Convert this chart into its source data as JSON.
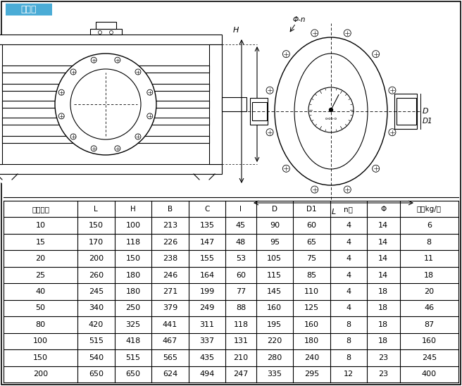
{
  "title": "铸铁型",
  "title_bg": "#4BACD6",
  "title_color": "#FFFFFF",
  "columns": [
    "公称通径",
    "L",
    "H",
    "B",
    "C",
    "I",
    "D",
    "D1",
    "n个",
    "Φ",
    "重量kg/台"
  ],
  "rows": [
    [
      10,
      150,
      100,
      213,
      135,
      45,
      90,
      60,
      4,
      14,
      6
    ],
    [
      15,
      170,
      118,
      226,
      147,
      48,
      95,
      65,
      4,
      14,
      8
    ],
    [
      20,
      200,
      150,
      238,
      155,
      53,
      105,
      75,
      4,
      14,
      11
    ],
    [
      25,
      260,
      180,
      246,
      164,
      60,
      115,
      85,
      4,
      14,
      18
    ],
    [
      40,
      245,
      180,
      271,
      199,
      77,
      145,
      110,
      4,
      18,
      20
    ],
    [
      50,
      340,
      250,
      379,
      249,
      88,
      160,
      125,
      4,
      18,
      46
    ],
    [
      80,
      420,
      325,
      441,
      311,
      118,
      195,
      160,
      8,
      18,
      87
    ],
    [
      100,
      515,
      418,
      467,
      337,
      131,
      220,
      180,
      8,
      18,
      160
    ],
    [
      150,
      540,
      515,
      565,
      435,
      210,
      280,
      240,
      8,
      23,
      245
    ],
    [
      200,
      650,
      650,
      624,
      494,
      247,
      335,
      295,
      12,
      23,
      400
    ]
  ],
  "fig_bg": "#FFFFFF",
  "line_color": "#000000",
  "col_widths_ratio": [
    1.7,
    0.85,
    0.85,
    0.85,
    0.85,
    0.7,
    0.85,
    0.85,
    0.85,
    0.75,
    1.35
  ]
}
